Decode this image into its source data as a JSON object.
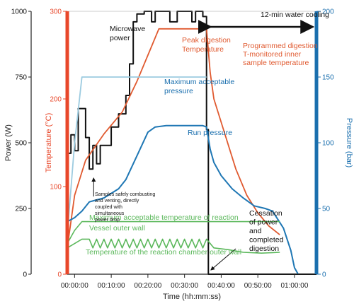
{
  "chart_data": {
    "type": "line",
    "xlabel": "Time (hh:mm:ss)",
    "x_ticks": [
      "00:00:00",
      "00:10:00",
      "00:20:00",
      "00:30:00",
      "00:40:00",
      "00:50:00",
      "01:00:00"
    ],
    "xlim_min": [
      -2,
      66
    ],
    "y_power": {
      "label": "Power (W)",
      "ticks": [
        "0",
        "250",
        "500",
        "750",
        "1000"
      ],
      "range": [
        0,
        1000
      ],
      "color": "#111111"
    },
    "y_temp": {
      "label": "Temperature (°C)",
      "ticks": [
        "0",
        "100",
        "200",
        "300"
      ],
      "range": [
        0,
        300
      ],
      "color": "#e05a30"
    },
    "y_pressure": {
      "label": "Pressure (bar)",
      "ticks": [
        "0",
        "50",
        "100",
        "150",
        "200"
      ],
      "range": [
        0,
        200
      ],
      "color": "#1a6fae"
    },
    "colors": {
      "power": "#111111",
      "temperature": "#e05a30",
      "pressure": "#1f77b4",
      "max_pressure": "#9ccbe0",
      "reaction_temp": "#5cb85c",
      "axis_temp": "#e8472a",
      "axis_pressure": "#1a6fae"
    },
    "series": [
      {
        "key": "power",
        "unit": "W",
        "step": true,
        "points": [
          [
            -2,
            460
          ],
          [
            -1,
            460
          ],
          [
            -1,
            530
          ],
          [
            0,
            530
          ],
          [
            0,
            470
          ],
          [
            1,
            470
          ],
          [
            1,
            630
          ],
          [
            3,
            630
          ],
          [
            3,
            520
          ],
          [
            4,
            520
          ],
          [
            4,
            400
          ],
          [
            5,
            400
          ],
          [
            5,
            490
          ],
          [
            6,
            490
          ],
          [
            6,
            420
          ],
          [
            7,
            420
          ],
          [
            7,
            490
          ],
          [
            10,
            490
          ],
          [
            10,
            560
          ],
          [
            12,
            560
          ],
          [
            12,
            610
          ],
          [
            14,
            610
          ],
          [
            14,
            680
          ],
          [
            15,
            680
          ],
          [
            15,
            800
          ],
          [
            16,
            800
          ],
          [
            16,
            960
          ],
          [
            17,
            960
          ],
          [
            17,
            990
          ],
          [
            19,
            990
          ],
          [
            19,
            1000
          ],
          [
            21,
            1000
          ],
          [
            21,
            960
          ],
          [
            22,
            960
          ],
          [
            22,
            1000
          ],
          [
            26,
            1000
          ],
          [
            26,
            960
          ],
          [
            28,
            960
          ],
          [
            28,
            1000
          ],
          [
            32,
            1000
          ],
          [
            32,
            960
          ],
          [
            33,
            960
          ],
          [
            33,
            1000
          ],
          [
            35,
            1000
          ],
          [
            35,
            980
          ],
          [
            36,
            980
          ],
          [
            36,
            550
          ],
          [
            36.5,
            550
          ],
          [
            36.5,
            0
          ],
          [
            66,
            0
          ]
        ]
      },
      {
        "key": "temperature",
        "unit": "°C",
        "points": [
          [
            -2,
            30
          ],
          [
            0,
            90
          ],
          [
            3,
            130
          ],
          [
            8,
            160
          ],
          [
            13,
            185
          ],
          [
            17,
            220
          ],
          [
            21,
            260
          ],
          [
            23,
            280
          ],
          [
            24,
            280
          ],
          [
            36,
            280
          ],
          [
            37,
            230
          ],
          [
            38,
            200
          ],
          [
            41,
            160
          ],
          [
            44,
            120
          ],
          [
            47,
            90
          ],
          [
            50,
            70
          ],
          [
            53,
            55
          ],
          [
            56,
            45
          ]
        ]
      },
      {
        "key": "pressure",
        "unit": "bar",
        "points": [
          [
            -2,
            40
          ],
          [
            0,
            43
          ],
          [
            2,
            48
          ],
          [
            4,
            55
          ],
          [
            8,
            58
          ],
          [
            12,
            65
          ],
          [
            14,
            72
          ],
          [
            17,
            90
          ],
          [
            20,
            108
          ],
          [
            22,
            112
          ],
          [
            25,
            113
          ],
          [
            28,
            113
          ],
          [
            31,
            113
          ],
          [
            33,
            113
          ],
          [
            35,
            113
          ],
          [
            36,
            112
          ],
          [
            37,
            95
          ],
          [
            38,
            85
          ],
          [
            40,
            75
          ],
          [
            43,
            65
          ],
          [
            46,
            58
          ],
          [
            49,
            52
          ],
          [
            52,
            50
          ],
          [
            54,
            48
          ],
          [
            57,
            35
          ],
          [
            59,
            18
          ],
          [
            60,
            5
          ],
          [
            61,
            0
          ]
        ]
      },
      {
        "key": "max_pressure",
        "unit": "bar",
        "points": [
          [
            -2,
            30
          ],
          [
            0,
            100
          ],
          [
            2,
            150
          ],
          [
            36,
            150
          ]
        ]
      },
      {
        "key": "reaction_temp",
        "unit": "°C",
        "points": [
          [
            -2,
            35
          ],
          [
            0,
            50
          ],
          [
            2,
            60
          ],
          [
            56,
            60
          ]
        ]
      },
      {
        "key": "vessel_wall",
        "unit": "°C",
        "points": [
          [
            -2,
            30
          ],
          [
            2,
            40
          ],
          [
            4,
            40
          ],
          [
            5,
            30
          ],
          [
            6,
            40
          ],
          [
            7,
            30
          ],
          [
            8,
            40
          ],
          [
            9,
            30
          ],
          [
            10,
            40
          ],
          [
            11,
            30
          ],
          [
            12,
            40
          ],
          [
            13,
            30
          ],
          [
            14,
            40
          ],
          [
            15,
            30
          ],
          [
            16,
            40
          ],
          [
            17,
            30
          ],
          [
            18,
            40
          ],
          [
            19,
            30
          ],
          [
            20,
            40
          ],
          [
            21,
            30
          ],
          [
            22,
            40
          ],
          [
            23,
            30
          ],
          [
            24,
            40
          ],
          [
            25,
            30
          ],
          [
            26,
            40
          ],
          [
            27,
            30
          ],
          [
            28,
            40
          ],
          [
            29,
            30
          ],
          [
            30,
            40
          ],
          [
            31,
            30
          ],
          [
            32,
            40
          ],
          [
            33,
            30
          ],
          [
            34,
            40
          ],
          [
            35,
            30
          ],
          [
            36,
            40
          ],
          [
            38,
            30
          ],
          [
            42,
            28
          ],
          [
            46,
            25
          ],
          [
            51,
            24
          ],
          [
            56,
            25
          ]
        ]
      }
    ],
    "annotations": {
      "microwave_power": "Microwave\npower",
      "peak_digestion_temperature": "Peak digestion\nTemperature",
      "programmed_digestion": "Programmed digestion\nT-monitored inner\nsample temperature",
      "max_acceptable_pressure": "Maximum acceptable\npressure",
      "run_pressure": "Run pressure",
      "max_acceptable_reaction_temp": "Maximum acceptable temperature of reaction",
      "vessel_outer_wall": "Vessel outer wall",
      "reaction_chamber_outer_wall": "Temperature of the reaction chamber outer wall",
      "water_cooling": "12-min water cooling",
      "samples_note": "Samples safely combusting\nand venting, directly\ncoupled with\nsimultaneous\npower drop",
      "cessation": "Cessation\nof power\nand\ncompleted\ndigestion"
    }
  }
}
